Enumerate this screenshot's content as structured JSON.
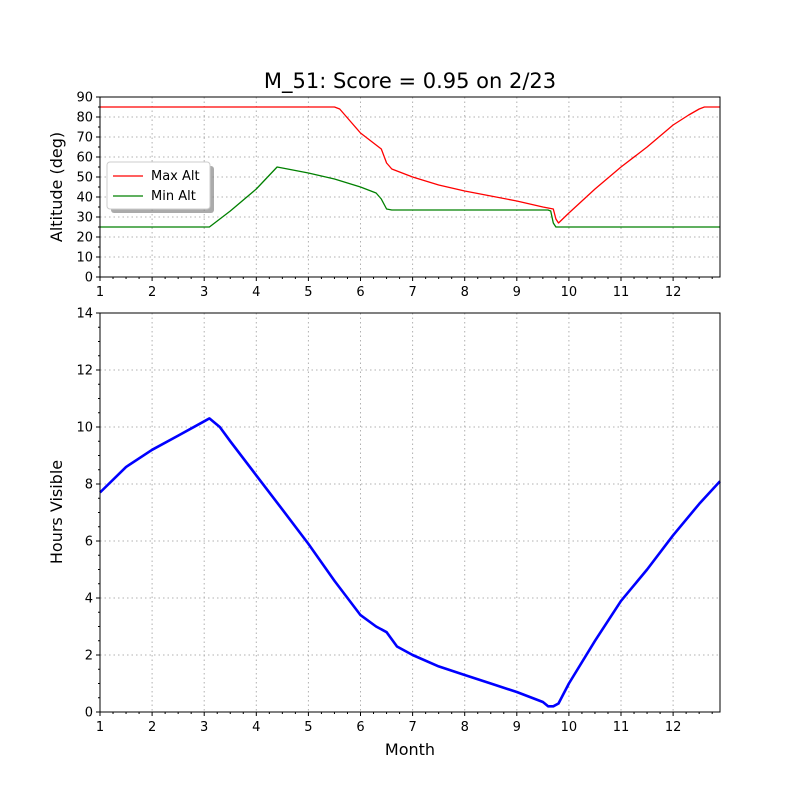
{
  "title": "M_51: Score = 0.95 on 2/23",
  "chart_data": [
    {
      "type": "line",
      "ylabel": "Altitude (deg)",
      "xlim": [
        1,
        12.9
      ],
      "ylim": [
        0,
        90
      ],
      "x_ticks": [
        "1",
        "2",
        "3",
        "4",
        "5",
        "6",
        "7",
        "8",
        "9",
        "10",
        "11",
        "12"
      ],
      "y_ticks": [
        "0",
        "10",
        "20",
        "30",
        "40",
        "50",
        "60",
        "70",
        "80",
        "90"
      ],
      "grid": true,
      "legend": "upper-left",
      "series": [
        {
          "name": "Max Alt",
          "color": "#ff0000",
          "x": [
            1,
            2,
            3,
            4,
            5,
            5.5,
            5.6,
            5.8,
            6.0,
            6.2,
            6.4,
            6.5,
            6.6,
            7.0,
            7.5,
            8.0,
            8.5,
            9.0,
            9.5,
            9.7,
            9.75,
            9.8,
            10.0,
            10.5,
            11.0,
            11.5,
            12.0,
            12.3,
            12.5,
            12.6,
            12.9
          ],
          "y": [
            85,
            85,
            85,
            85,
            85,
            85,
            84,
            78,
            72,
            68,
            64,
            57,
            54,
            50,
            46,
            43,
            40.5,
            38,
            35,
            34,
            29,
            27,
            32,
            44,
            55,
            65,
            76,
            81,
            84,
            85,
            85
          ]
        },
        {
          "name": "Min Alt",
          "color": "#008000",
          "x": [
            1,
            2,
            3,
            3.1,
            3.5,
            4.0,
            4.4,
            4.6,
            5.0,
            5.5,
            6.0,
            6.3,
            6.4,
            6.5,
            6.6,
            7.0,
            8.0,
            9.0,
            9.6,
            9.65,
            9.7,
            9.75,
            10.0,
            11.0,
            12.0,
            12.9
          ],
          "y": [
            25,
            25,
            25,
            25,
            33,
            44,
            55,
            54,
            52,
            49,
            45,
            42,
            39,
            34,
            33.5,
            33.5,
            33.5,
            33.5,
            33.5,
            33,
            27,
            25,
            25,
            25,
            25,
            25
          ]
        }
      ]
    },
    {
      "type": "line",
      "xlabel": "Month",
      "ylabel": "Hours Visible",
      "xlim": [
        1,
        12.9
      ],
      "ylim": [
        0,
        14
      ],
      "x_ticks": [
        "1",
        "2",
        "3",
        "4",
        "5",
        "6",
        "7",
        "8",
        "9",
        "10",
        "11",
        "12"
      ],
      "y_ticks": [
        "0",
        "2",
        "4",
        "6",
        "8",
        "10",
        "12",
        "14"
      ],
      "grid": true,
      "series": [
        {
          "color": "#0000ff",
          "x": [
            1,
            1.5,
            2,
            2.5,
            3,
            3.1,
            3.3,
            3.5,
            4.0,
            4.5,
            5.0,
            5.5,
            6.0,
            6.3,
            6.5,
            6.7,
            7.0,
            7.5,
            8.0,
            8.5,
            9.0,
            9.5,
            9.6,
            9.7,
            9.8,
            10.0,
            10.5,
            11.0,
            11.5,
            12.0,
            12.5,
            12.9
          ],
          "y": [
            7.7,
            8.6,
            9.2,
            9.7,
            10.2,
            10.3,
            10.0,
            9.5,
            8.3,
            7.1,
            5.9,
            4.6,
            3.4,
            3.0,
            2.8,
            2.3,
            2.0,
            1.6,
            1.3,
            1.0,
            0.7,
            0.35,
            0.2,
            0.2,
            0.3,
            1.0,
            2.5,
            3.9,
            5.0,
            6.2,
            7.3,
            8.1
          ]
        }
      ]
    }
  ]
}
